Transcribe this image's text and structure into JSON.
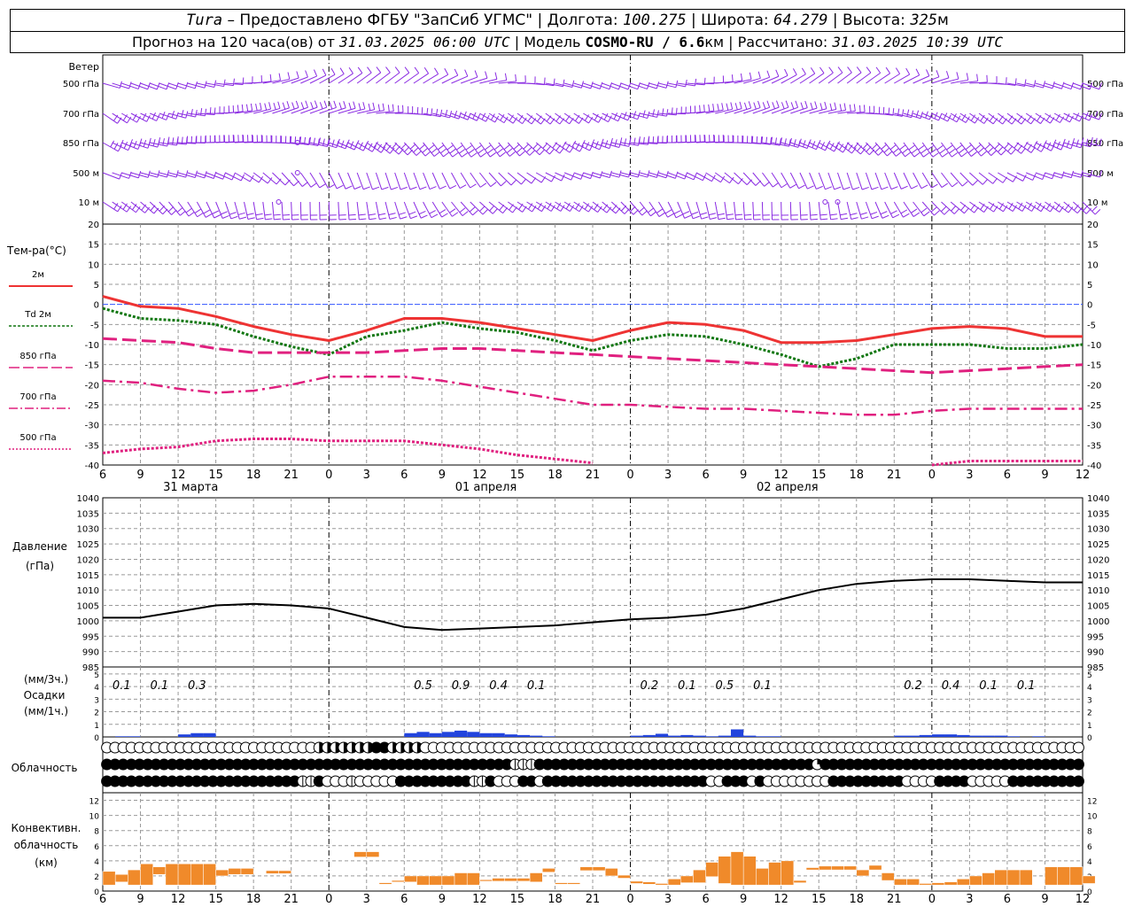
{
  "header": {
    "station": "Tura",
    "dash": " – ",
    "provider": "Предоставлено ФГБУ \"ЗапСиб УГМС\"",
    "sep": " | ",
    "lon_label": "Долгота: ",
    "lon": "100.275",
    "lat_label": "Широта: ",
    "lat": "64.279",
    "alt_label": "Высота: ",
    "alt": "325",
    "alt_unit": "м",
    "forecast_label": "Прогноз на 120 часа(ов) от ",
    "forecast_time": "31.03.2025 06:00 UTC",
    "model_label": "Модель ",
    "model": "COSMO-RU / 6.6",
    "model_unit": "км",
    "calc_label": "Рассчитано: ",
    "calc_time": "31.03.2025 10:39 UTC"
  },
  "colors": {
    "t2m": "#ee3333",
    "td2m": "#117711",
    "t850": "#e0207f",
    "t700": "#e0207f",
    "t500": "#e0207f",
    "wind": "#8a2be2",
    "pressure": "#000000",
    "precip": "#2244dd",
    "convective": "#f08a2a",
    "zero_line": "#3355ff",
    "grid": "#999999"
  },
  "x_axis": {
    "hour_labels": [
      "6",
      "9",
      "12",
      "15",
      "18",
      "21",
      "0",
      "3",
      "6",
      "9",
      "12",
      "15",
      "18",
      "21",
      "0",
      "3",
      "6",
      "9",
      "12",
      "15",
      "18",
      "21",
      "0",
      "3",
      "6",
      "9",
      "12"
    ],
    "dates": [
      "31 марта",
      "01 апреля",
      "02 апреля"
    ]
  },
  "wind": {
    "title": "Ветер",
    "levels": [
      "500 гПа",
      "700 гПа",
      "850 гПа",
      "500 м",
      "10 м"
    ]
  },
  "chart_data": [
    {
      "type": "line",
      "id": "temperature",
      "title": "Тем-ра(°C)",
      "x": [
        6,
        9,
        12,
        15,
        18,
        21,
        24,
        27,
        30,
        33,
        36,
        39,
        42,
        45,
        48,
        51,
        54,
        57,
        60,
        63,
        66,
        69,
        72,
        75,
        78,
        81,
        84
      ],
      "ylim": [
        -40,
        20
      ],
      "yticks": [
        "20",
        "15",
        "10",
        "5",
        "0",
        "-5",
        "-10",
        "-15",
        "-20",
        "-25",
        "-30",
        "-35",
        "-40"
      ],
      "series": [
        {
          "name": "2м",
          "values": [
            2,
            -0.5,
            -1,
            -3,
            -5.5,
            -7.5,
            -9,
            -6.5,
            -3.5,
            -3.5,
            -4.5,
            -6,
            -7.5,
            -9,
            -6.5,
            -4.5,
            -5,
            -6.5,
            -9.5,
            -9.5,
            -9,
            -7.5,
            -6,
            -5.5,
            -6,
            -8,
            -8
          ]
        },
        {
          "name": "Td 2м",
          "values": [
            -1,
            -3.5,
            -4,
            -5,
            -8,
            -10.5,
            -12.5,
            -8,
            -6.5,
            -4.5,
            -6,
            -7,
            -9,
            -11.5,
            -9,
            -7.5,
            -8,
            -10,
            -12.5,
            -15.5,
            -13.5,
            -10,
            -10,
            -10,
            -11,
            -11,
            -10
          ]
        },
        {
          "name": "850 гПа",
          "values": [
            -8.5,
            -9,
            -9.5,
            -11,
            -12,
            -12,
            -12,
            -12,
            -11.5,
            -11,
            -11,
            -11.5,
            -12,
            -12.5,
            -13,
            -13.5,
            -14,
            -14.5,
            -15,
            -15.5,
            -16,
            -16.5,
            -17,
            -16.5,
            -16,
            -15.5,
            -15
          ]
        },
        {
          "name": "700 гПа",
          "values": [
            -19,
            -19.5,
            -21,
            -22,
            -21.5,
            -20,
            -18,
            -18,
            -18,
            -19,
            -20.5,
            -22,
            -23.5,
            -25,
            -25,
            -25.5,
            -26,
            -26,
            -26.5,
            -27,
            -27.5,
            -27.5,
            -26.5,
            -26,
            -26,
            -26,
            -26
          ]
        },
        {
          "name": "500 гПа",
          "values": [
            -37,
            -36,
            -35.5,
            -34,
            -33.5,
            -33.5,
            -34,
            -34,
            -34,
            -35,
            -36,
            -37.5,
            -38.5,
            -39.5,
            null,
            null,
            null,
            null,
            null,
            null,
            null,
            null,
            -40,
            -39,
            -39,
            -39,
            -39
          ]
        }
      ]
    },
    {
      "type": "line",
      "id": "pressure",
      "title": "Давление",
      "unit": "(гПа)",
      "x": [
        6,
        9,
        12,
        15,
        18,
        21,
        24,
        27,
        30,
        33,
        36,
        39,
        42,
        45,
        48,
        51,
        54,
        57,
        60,
        63,
        66,
        69,
        72,
        75,
        78,
        81,
        84
      ],
      "ylim": [
        985,
        1040
      ],
      "yticks": [
        "1040",
        "1035",
        "1030",
        "1025",
        "1020",
        "1015",
        "1010",
        "1005",
        "1000",
        "995",
        "990",
        "985"
      ],
      "series": [
        {
          "name": "",
          "values": [
            1001,
            1001,
            1003,
            1005,
            1005.5,
            1005,
            1004,
            1001,
            998,
            997,
            997.5,
            998,
            998.5,
            999.5,
            1000.5,
            1001,
            1002,
            1004,
            1007,
            1010,
            1012,
            1013,
            1013.5,
            1013.5,
            1013,
            1012.5,
            1012.5
          ]
        }
      ]
    },
    {
      "type": "bar",
      "id": "precipitation",
      "title": "Осадки",
      "unit_top": "(мм/3ч.)",
      "unit_bottom": "(мм/1ч.)",
      "ylim": [
        0,
        5
      ],
      "yticks": [
        "5",
        "4",
        "3",
        "2",
        "1",
        "0"
      ],
      "labels": [
        {
          "x": 7.5,
          "text": "0.1"
        },
        {
          "x": 10.5,
          "text": "0.1"
        },
        {
          "x": 13.5,
          "text": "0.3"
        },
        {
          "x": 31.5,
          "text": "0.5"
        },
        {
          "x": 34.5,
          "text": "0.9"
        },
        {
          "x": 37.5,
          "text": "0.4"
        },
        {
          "x": 40.5,
          "text": "0.1"
        },
        {
          "x": 49.5,
          "text": "0.2"
        },
        {
          "x": 52.5,
          "text": "0.1"
        },
        {
          "x": 55.5,
          "text": "0.5"
        },
        {
          "x": 58.5,
          "text": "0.1"
        },
        {
          "x": 70.5,
          "text": "0.2"
        },
        {
          "x": 73.5,
          "text": "0.4"
        },
        {
          "x": 76.5,
          "text": "0.1"
        },
        {
          "x": 79.5,
          "text": "0.1"
        }
      ],
      "x": [
        7,
        8,
        12,
        13,
        14,
        30,
        31,
        32,
        33,
        34,
        35,
        36,
        37,
        38,
        39,
        40,
        41,
        48,
        49,
        50,
        51,
        52,
        53,
        54,
        55,
        56,
        57,
        58,
        59,
        69,
        70,
        71,
        72,
        73,
        74,
        75,
        76,
        77,
        78,
        80
      ],
      "values": [
        0.05,
        0.05,
        0.2,
        0.3,
        0.3,
        0.3,
        0.4,
        0.3,
        0.4,
        0.5,
        0.4,
        0.3,
        0.3,
        0.2,
        0.15,
        0.1,
        0.05,
        0.1,
        0.15,
        0.25,
        0.1,
        0.15,
        0.1,
        0.05,
        0.1,
        0.6,
        0.1,
        0.05,
        0.05,
        0.1,
        0.1,
        0.15,
        0.2,
        0.2,
        0.15,
        0.1,
        0.1,
        0.1,
        0.05,
        0.05
      ]
    },
    {
      "type": "table",
      "id": "cloudiness",
      "title": "Облачность",
      "rows": [
        "0000000000000000000000000022222224422220000000000000000000000000000000000000000000000000000000000000000000000000000000000000003000000000000000000000000000000",
        "44444444444444444444444444444444444444444444444444111444444444444444444444444444444444434444444444444444444444444444444424224242424424424244444444444444444",
        "44444444444444444444444411400010000044444444411400044044444444444444444444004440400000000444444444000044440000044444444444441100000000000000000000000000000000"
      ]
    },
    {
      "type": "bar",
      "id": "convective",
      "title": "Конвективн. облачность (км)",
      "ylim": [
        0,
        13
      ],
      "yticks": [
        "12",
        "10",
        "8",
        "6",
        "4",
        "2",
        "0"
      ],
      "segments": [
        {
          "x0": 6,
          "x1": 7,
          "b": 0.8,
          "t": 2.6
        },
        {
          "x0": 7,
          "x1": 8,
          "b": 1.2,
          "t": 2.2
        },
        {
          "x0": 8,
          "x1": 9,
          "b": 0.8,
          "t": 2.8
        },
        {
          "x0": 9,
          "x1": 10,
          "b": 0.8,
          "t": 3.6
        },
        {
          "x0": 10,
          "x1": 11,
          "b": 2.2,
          "t": 3.2
        },
        {
          "x0": 11,
          "x1": 12,
          "b": 0.8,
          "t": 3.6
        },
        {
          "x0": 12,
          "x1": 13,
          "b": 0.8,
          "t": 3.6
        },
        {
          "x0": 13,
          "x1": 14,
          "b": 0.8,
          "t": 3.6
        },
        {
          "x0": 14,
          "x1": 15,
          "b": 0.8,
          "t": 3.6
        },
        {
          "x0": 15,
          "x1": 16,
          "b": 2.0,
          "t": 2.8
        },
        {
          "x0": 16,
          "x1": 17,
          "b": 2.2,
          "t": 3.0
        },
        {
          "x0": 17,
          "x1": 18,
          "b": 2.2,
          "t": 3.0
        },
        {
          "x0": 19,
          "x1": 20,
          "b": 2.3,
          "t": 2.7
        },
        {
          "x0": 20,
          "x1": 21,
          "b": 2.3,
          "t": 2.7
        },
        {
          "x0": 26,
          "x1": 27,
          "b": 4.5,
          "t": 5.2
        },
        {
          "x0": 27,
          "x1": 28,
          "b": 4.5,
          "t": 5.2
        },
        {
          "x0": 28,
          "x1": 29,
          "b": 0.9,
          "t": 1.1
        },
        {
          "x0": 29,
          "x1": 30,
          "b": 1.2,
          "t": 1.4
        },
        {
          "x0": 30,
          "x1": 31,
          "b": 1.2,
          "t": 2.0
        },
        {
          "x0": 31,
          "x1": 32,
          "b": 0.8,
          "t": 2.0
        },
        {
          "x0": 32,
          "x1": 33,
          "b": 0.8,
          "t": 2.0
        },
        {
          "x0": 33,
          "x1": 34,
          "b": 0.8,
          "t": 2.0
        },
        {
          "x0": 34,
          "x1": 35,
          "b": 0.8,
          "t": 2.4
        },
        {
          "x0": 35,
          "x1": 36,
          "b": 0.8,
          "t": 2.4
        },
        {
          "x0": 36,
          "x1": 37,
          "b": 1.3,
          "t": 1.5
        },
        {
          "x0": 37,
          "x1": 38,
          "b": 1.3,
          "t": 1.7
        },
        {
          "x0": 38,
          "x1": 39,
          "b": 1.3,
          "t": 1.7
        },
        {
          "x0": 39,
          "x1": 40,
          "b": 1.3,
          "t": 1.7
        },
        {
          "x0": 40,
          "x1": 41,
          "b": 1.2,
          "t": 2.4
        },
        {
          "x0": 41,
          "x1": 42,
          "b": 2.5,
          "t": 3.0
        },
        {
          "x0": 42,
          "x1": 43,
          "b": 0.9,
          "t": 1.1
        },
        {
          "x0": 43,
          "x1": 44,
          "b": 0.9,
          "t": 1.1
        },
        {
          "x0": 44,
          "x1": 45,
          "b": 2.7,
          "t": 3.2
        },
        {
          "x0": 45,
          "x1": 46,
          "b": 2.7,
          "t": 3.2
        },
        {
          "x0": 46,
          "x1": 47,
          "b": 2.0,
          "t": 3.0
        },
        {
          "x0": 47,
          "x1": 48,
          "b": 1.7,
          "t": 2.1
        },
        {
          "x0": 48,
          "x1": 49,
          "b": 1.0,
          "t": 1.3
        },
        {
          "x0": 49,
          "x1": 50,
          "b": 0.9,
          "t": 1.2
        },
        {
          "x0": 50,
          "x1": 51,
          "b": 0.8,
          "t": 1.0
        },
        {
          "x0": 51,
          "x1": 52,
          "b": 0.8,
          "t": 1.6
        },
        {
          "x0": 52,
          "x1": 53,
          "b": 1.1,
          "t": 2.0
        },
        {
          "x0": 53,
          "x1": 54,
          "b": 1.1,
          "t": 2.8
        },
        {
          "x0": 54,
          "x1": 55,
          "b": 1.9,
          "t": 3.8
        },
        {
          "x0": 55,
          "x1": 56,
          "b": 1.0,
          "t": 4.6
        },
        {
          "x0": 56,
          "x1": 57,
          "b": 0.8,
          "t": 5.2
        },
        {
          "x0": 57,
          "x1": 58,
          "b": 0.8,
          "t": 4.6
        },
        {
          "x0": 58,
          "x1": 59,
          "b": 0.8,
          "t": 3.0
        },
        {
          "x0": 59,
          "x1": 60,
          "b": 0.8,
          "t": 3.8
        },
        {
          "x0": 60,
          "x1": 61,
          "b": 0.8,
          "t": 4.0
        },
        {
          "x0": 61,
          "x1": 62,
          "b": 1.1,
          "t": 1.4
        },
        {
          "x0": 62,
          "x1": 63,
          "b": 2.8,
          "t": 3.1
        },
        {
          "x0": 63,
          "x1": 64,
          "b": 2.8,
          "t": 3.3
        },
        {
          "x0": 64,
          "x1": 65,
          "b": 2.8,
          "t": 3.3
        },
        {
          "x0": 65,
          "x1": 66,
          "b": 2.8,
          "t": 3.3
        },
        {
          "x0": 66,
          "x1": 67,
          "b": 2.0,
          "t": 2.8
        },
        {
          "x0": 67,
          "x1": 68,
          "b": 2.8,
          "t": 3.4
        },
        {
          "x0": 68,
          "x1": 69,
          "b": 1.4,
          "t": 2.4
        },
        {
          "x0": 69,
          "x1": 70,
          "b": 0.8,
          "t": 1.6
        },
        {
          "x0": 70,
          "x1": 71,
          "b": 0.8,
          "t": 1.6
        },
        {
          "x0": 71,
          "x1": 72,
          "b": 0.8,
          "t": 1.0
        },
        {
          "x0": 72,
          "x1": 73,
          "b": 0.8,
          "t": 1.1
        },
        {
          "x0": 73,
          "x1": 74,
          "b": 0.8,
          "t": 1.2
        },
        {
          "x0": 74,
          "x1": 75,
          "b": 0.8,
          "t": 1.6
        },
        {
          "x0": 75,
          "x1": 76,
          "b": 0.8,
          "t": 2.0
        },
        {
          "x0": 76,
          "x1": 77,
          "b": 0.8,
          "t": 2.4
        },
        {
          "x0": 77,
          "x1": 78,
          "b": 0.8,
          "t": 2.8
        },
        {
          "x0": 78,
          "x1": 79,
          "b": 0.8,
          "t": 2.8
        },
        {
          "x0": 79,
          "x1": 80,
          "b": 0.8,
          "t": 2.8
        },
        {
          "x0": 81,
          "x1": 82,
          "b": 0.8,
          "t": 3.2
        },
        {
          "x0": 82,
          "x1": 83,
          "b": 0.8,
          "t": 3.2
        },
        {
          "x0": 83,
          "x1": 84,
          "b": 0.8,
          "t": 3.2
        },
        {
          "x0": 84,
          "x1": 85,
          "b": 1.0,
          "t": 2.0
        }
      ]
    }
  ]
}
